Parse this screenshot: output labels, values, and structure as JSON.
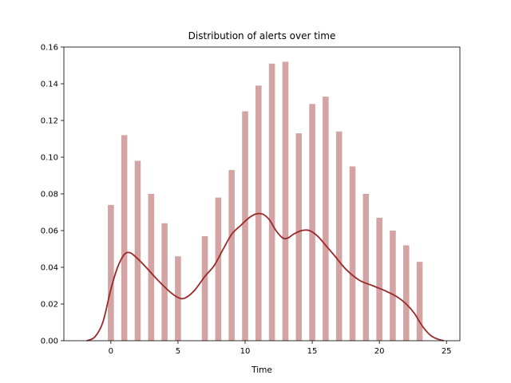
{
  "chart_data": {
    "type": "bar",
    "title": "Distribution of alerts over time",
    "xlabel": "Time",
    "ylabel": "",
    "xlim": [
      -3.5,
      26
    ],
    "ylim": [
      0,
      0.16
    ],
    "xticks": [
      0,
      5,
      10,
      15,
      20,
      25
    ],
    "yticks": [
      0.0,
      0.02,
      0.04,
      0.06,
      0.08,
      0.1,
      0.12,
      0.14,
      0.16
    ],
    "grid": false,
    "legend": "none",
    "bars": {
      "color": "#d4a3a3",
      "width": 0.45,
      "x": [
        0,
        1,
        2,
        3,
        4,
        5,
        6,
        7,
        8,
        9,
        10,
        11,
        12,
        13,
        14,
        15,
        16,
        17,
        18,
        19,
        20,
        21,
        22,
        23
      ],
      "values": [
        0.074,
        0.112,
        0.098,
        0.08,
        0.064,
        0.046,
        0.0,
        0.057,
        0.078,
        0.093,
        0.125,
        0.139,
        0.151,
        0.152,
        0.113,
        0.129,
        0.133,
        0.114,
        0.095,
        0.08,
        0.067,
        0.06,
        0.052,
        0.043
      ]
    },
    "kde": {
      "color": "#9a2a2a",
      "x": [
        -1.8,
        -1.2,
        -0.6,
        0.0,
        0.5,
        1.0,
        1.4,
        1.8,
        2.5,
        3.5,
        4.5,
        5.2,
        5.7,
        6.3,
        7.0,
        7.7,
        8.3,
        9.0,
        9.7,
        10.3,
        10.8,
        11.3,
        11.8,
        12.3,
        12.8,
        13.2,
        13.6,
        14.2,
        14.8,
        15.4,
        16.0,
        16.7,
        17.5,
        18.5,
        19.5,
        20.5,
        21.3,
        22.0,
        22.6,
        23.2,
        23.8,
        24.3,
        24.8
      ],
      "y": [
        0.0,
        0.002,
        0.01,
        0.028,
        0.04,
        0.047,
        0.048,
        0.046,
        0.041,
        0.033,
        0.026,
        0.023,
        0.024,
        0.028,
        0.035,
        0.041,
        0.049,
        0.058,
        0.063,
        0.067,
        0.069,
        0.069,
        0.066,
        0.06,
        0.056,
        0.056,
        0.058,
        0.06,
        0.06,
        0.057,
        0.052,
        0.046,
        0.039,
        0.033,
        0.03,
        0.027,
        0.024,
        0.02,
        0.015,
        0.008,
        0.003,
        0.001,
        0.0
      ]
    }
  }
}
